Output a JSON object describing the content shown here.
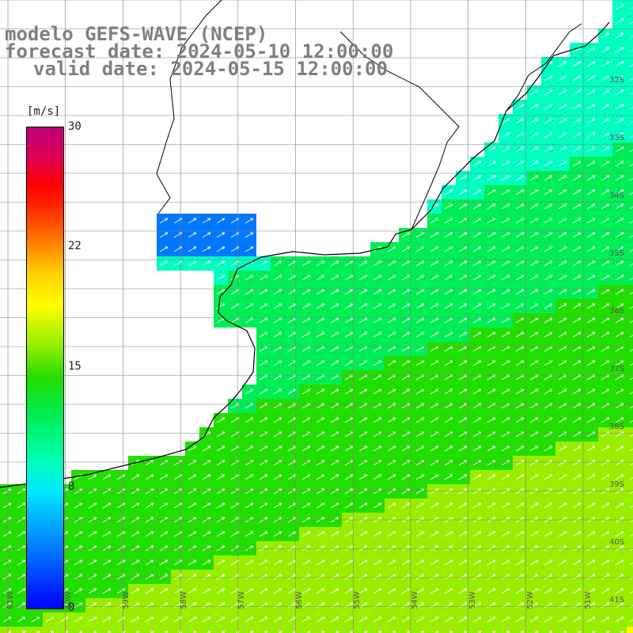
{
  "title": {
    "line1": "modelo GEFS-WAVE (NCEP)",
    "line2": "forecast date: 2024-05-10 12:00:00",
    "line3": "valid date: 2024-05-15 12:00:00"
  },
  "colorbar": {
    "unit": "[m/s]",
    "ticks": [
      "30",
      "22",
      "15",
      "8",
      "0"
    ],
    "min": 0,
    "max": 30
  },
  "axes": {
    "lat_labels": [
      "32S",
      "33S",
      "34S",
      "35S",
      "36S",
      "37S",
      "38S",
      "39S",
      "40S",
      "41S"
    ],
    "lon_labels": [
      "61W",
      "60W",
      "59W",
      "58W",
      "57W",
      "56W",
      "55W",
      "54W",
      "53W",
      "52W",
      "51W"
    ]
  },
  "colors": {
    "land": "#ffffff",
    "grid": "#808080",
    "coast": "#000000",
    "arrow": "#ffffff"
  }
}
